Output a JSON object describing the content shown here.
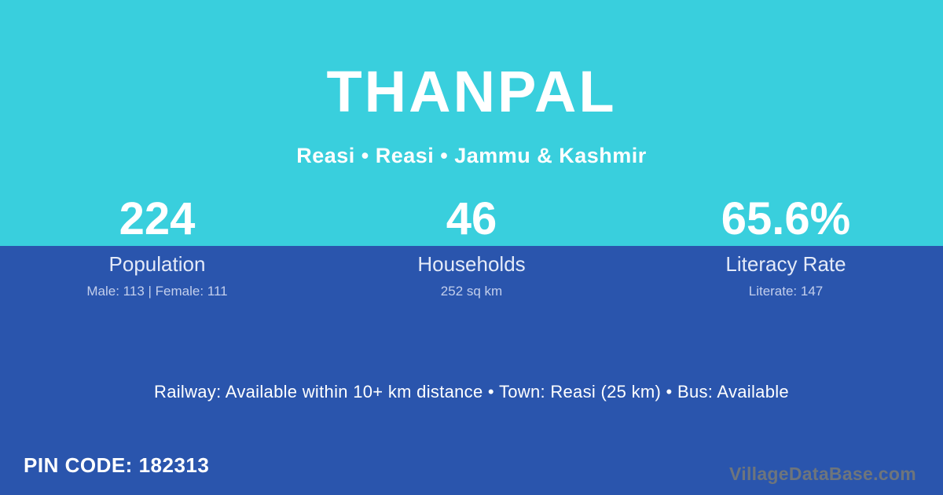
{
  "colors": {
    "top_background": "#39CFDD",
    "bottom_background": "#2A55AD",
    "primary_text": "#FFFFFF",
    "muted_label_text": "#E4EAF8",
    "detail_text": "#C3CFEC",
    "watermark_text": "#6E757C"
  },
  "header": {
    "title": "THANPAL",
    "subtitle": "Reasi • Reasi • Jammu & Kashmir"
  },
  "stats": [
    {
      "value": "224",
      "label": "Population",
      "detail": "Male: 113 | Female: 111"
    },
    {
      "value": "46",
      "label": "Households",
      "detail": "252 sq km"
    },
    {
      "value": "65.6%",
      "label": "Literacy Rate",
      "detail": "Literate: 147"
    }
  ],
  "transport_line": "Railway: Available within 10+ km distance  •  Town: Reasi (25 km)  •  Bus: Available",
  "footer": {
    "pin_code": "PIN CODE: 182313",
    "watermark": "VillageDataBase.com"
  }
}
